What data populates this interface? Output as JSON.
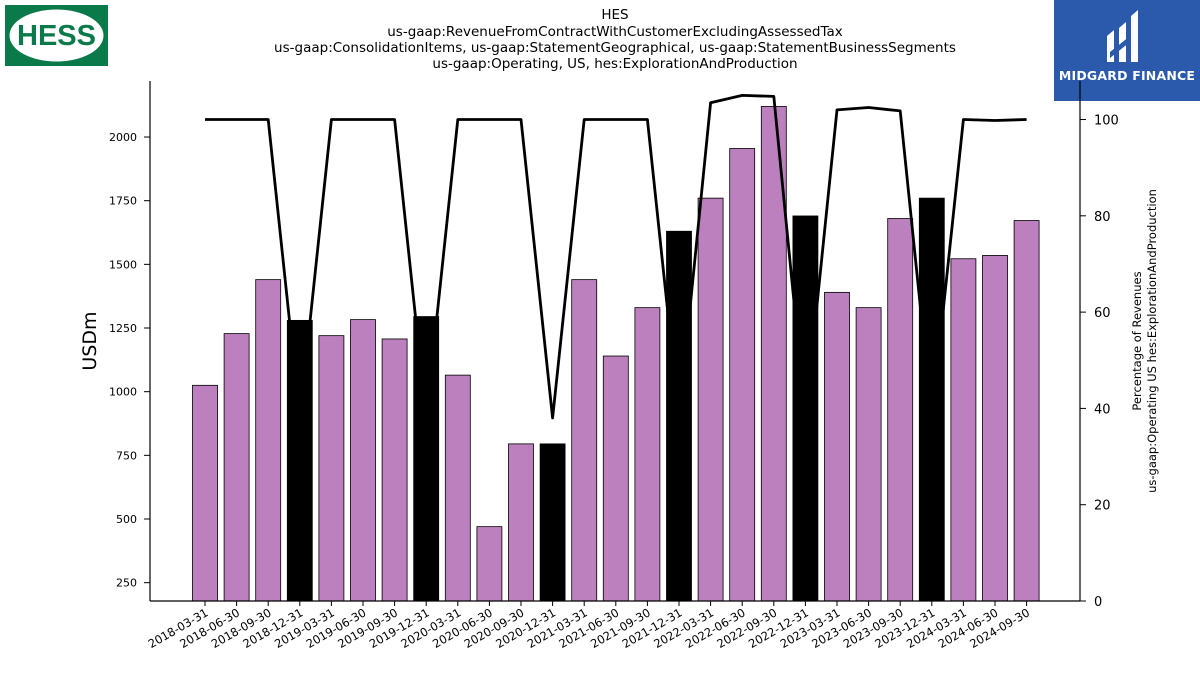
{
  "title_lines": [
    "HES",
    "us-gaap:RevenueFromContractWithCustomerExcludingAssessedTax",
    "us-gaap:ConsolidationItems, us-gaap:StatementGeographical, us-gaap:StatementBusinessSegments",
    "us-gaap:Operating, US, hes:ExplorationAndProduction"
  ],
  "logos": {
    "left_text": "HESS",
    "right_text": "MIDGARD FINANCE"
  },
  "chart_data": {
    "type": "bar",
    "categories": [
      "2018-03-31",
      "2018-06-30",
      "2018-09-30",
      "2018-12-31",
      "2019-03-31",
      "2019-06-30",
      "2019-09-30",
      "2019-12-31",
      "2020-03-31",
      "2020-06-30",
      "2020-09-30",
      "2020-12-31",
      "2021-03-31",
      "2021-06-30",
      "2021-09-30",
      "2021-12-31",
      "2022-03-31",
      "2022-06-30",
      "2022-09-30",
      "2022-12-31",
      "2023-03-31",
      "2023-06-30",
      "2023-09-30",
      "2023-12-31",
      "2024-03-31",
      "2024-06-30",
      "2024-09-30"
    ],
    "series": [
      {
        "values": [
          1025,
          1228,
          1440,
          1280,
          1220,
          1283,
          1207,
          1295,
          1065,
          470,
          795,
          795,
          1440,
          1140,
          1330,
          1630,
          1760,
          1955,
          2120,
          1690,
          1390,
          1330,
          1680,
          1760,
          1522,
          1535,
          1672
        ],
        "axis": "left",
        "colors": [
          "#bb80bd",
          "#bb80bd",
          "#bb80bd",
          "#000000",
          "#bb80bd",
          "#bb80bd",
          "#bb80bd",
          "#000000",
          "#bb80bd",
          "#bb80bd",
          "#bb80bd",
          "#000000",
          "#bb80bd",
          "#bb80bd",
          "#bb80bd",
          "#000000",
          "#bb80bd",
          "#bb80bd",
          "#bb80bd",
          "#000000",
          "#bb80bd",
          "#bb80bd",
          "#bb80bd",
          "#000000",
          "#bb80bd",
          "#bb80bd",
          "#bb80bd"
        ]
      },
      {
        "type": "line",
        "axis": "right",
        "color": "#000000",
        "values": [
          100,
          100,
          100,
          null,
          100,
          100,
          100,
          null,
          100,
          100,
          100,
          null,
          100,
          100,
          100,
          null,
          103.5,
          105,
          104.8,
          null,
          102,
          102.5,
          101.8,
          null,
          100,
          99.8,
          100
        ]
      }
    ],
    "ylabel": "USDm",
    "ylabel_right": [
      "Percentage of Revenues",
      "us-gaap:Operating US hes:ExplorationAndProduction"
    ],
    "ylim": [
      178,
      2220
    ],
    "yticks": [
      250,
      500,
      750,
      1000,
      1250,
      1500,
      1750,
      2000
    ],
    "ylim_right": [
      0,
      108
    ],
    "yticks_right": [
      0,
      20,
      40,
      60,
      80,
      100
    ],
    "grid": false
  }
}
